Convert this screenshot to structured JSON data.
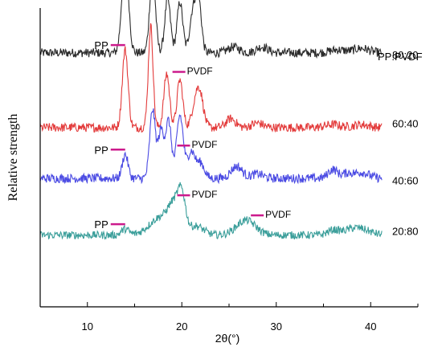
{
  "chart_data": {
    "type": "line",
    "xlabel": "2θ(°)",
    "ylabel": "Relative  strength",
    "legend_title": "PP:PVDF",
    "xlim": [
      5,
      45
    ],
    "xticks": [
      10,
      20,
      30,
      40
    ],
    "grid": false,
    "series": [
      {
        "name": "80:20",
        "color": "#2b2b2b",
        "baseline": 85,
        "noise": 1.5,
        "peaks": [
          [
            14.0,
            32,
            0.35
          ],
          [
            16.9,
            27,
            0.3
          ],
          [
            18.5,
            18,
            0.3
          ],
          [
            19.8,
            17,
            0.3
          ],
          [
            21.2,
            14,
            0.35
          ],
          [
            21.8,
            16,
            0.3
          ],
          [
            25.5,
            2,
            0.6
          ],
          [
            28.5,
            2,
            0.6
          ],
          [
            36.5,
            1,
            0.8
          ],
          [
            39.0,
            1.5,
            0.8
          ]
        ],
        "peak_labels": [
          {
            "text": "PP",
            "x": 14.0
          },
          {
            "text": "PVDF",
            "x": 18.5
          }
        ]
      },
      {
        "name": "60:40",
        "color": "#e33b3b",
        "baseline": 60,
        "noise": 1.5,
        "peaks": [
          [
            14.0,
            26,
            0.3
          ],
          [
            16.7,
            34,
            0.25
          ],
          [
            18.4,
            18,
            0.3
          ],
          [
            19.8,
            16,
            0.3
          ],
          [
            21.5,
            9,
            0.4
          ],
          [
            22.0,
            8,
            0.35
          ],
          [
            25.2,
            3,
            0.5
          ],
          [
            28.0,
            1.5,
            0.6
          ],
          [
            36.0,
            1,
            0.8
          ],
          [
            39.0,
            1,
            0.8
          ]
        ],
        "peak_labels": [
          {
            "text": "PP",
            "x": 14.0
          },
          {
            "text": "PVDF",
            "x": 18.5
          }
        ]
      },
      {
        "name": "40:60",
        "color": "#4a4ae3",
        "baseline": 43,
        "noise": 1.5,
        "peaks": [
          [
            14.0,
            8,
            0.3
          ],
          [
            16.9,
            23,
            0.3
          ],
          [
            17.8,
            16,
            0.3
          ],
          [
            18.6,
            19,
            0.3
          ],
          [
            19.8,
            21,
            0.35
          ],
          [
            21.0,
            9,
            0.4
          ],
          [
            22.0,
            5,
            0.4
          ],
          [
            25.8,
            4,
            0.6
          ],
          [
            28.0,
            1.5,
            0.6
          ],
          [
            36.0,
            3,
            0.5
          ],
          [
            37.5,
            1.5,
            0.5
          ],
          [
            39.0,
            2,
            0.8
          ]
        ],
        "peak_labels": [
          {
            "text": "PP",
            "x": 14.0
          },
          {
            "text": "PVDF",
            "x": 19.0
          }
        ]
      },
      {
        "name": "20:80",
        "color": "#3a9e9a",
        "baseline": 24,
        "noise": 1.3,
        "peaks": [
          [
            14.0,
            2,
            0.4
          ],
          [
            17.8,
            6,
            1.2
          ],
          [
            19.2,
            8,
            0.6
          ],
          [
            20.0,
            11,
            0.4
          ],
          [
            21.5,
            3,
            0.8
          ],
          [
            26.8,
            5,
            1.0
          ],
          [
            36.0,
            1.5,
            0.6
          ],
          [
            38.5,
            2.5,
            1.2
          ]
        ],
        "peak_labels": [
          {
            "text": "PP",
            "x": 14.0
          },
          {
            "text": "PVDF",
            "x": 19.0
          },
          {
            "text": "PVDF",
            "x": 26.8
          }
        ]
      }
    ]
  },
  "colors": {
    "label_marker": "#cc1a8c",
    "axis": "#000000"
  }
}
